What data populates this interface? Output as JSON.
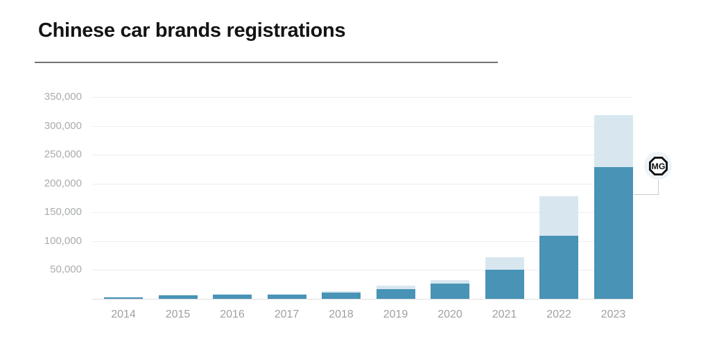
{
  "header": {
    "title": "Chinese car brands registrations"
  },
  "badge": {
    "label": "MG"
  },
  "colors": {
    "bar_dark": "#4893b6",
    "bar_light": "#d8e7ef",
    "grid": "#ededed",
    "axis_text": "#a9abad",
    "title_text": "#141414",
    "badge_bg": "#eef3f7"
  },
  "chart_data": {
    "type": "bar",
    "stacked": true,
    "title": "Chinese car brands registrations",
    "xlabel": "",
    "ylabel": "",
    "categories": [
      "2014",
      "2015",
      "2016",
      "2017",
      "2018",
      "2019",
      "2020",
      "2021",
      "2022",
      "2023"
    ],
    "series": [
      {
        "name": "MG",
        "color": "#4893b6",
        "values": [
          3500,
          6000,
          8000,
          7500,
          10500,
          17000,
          26000,
          50000,
          110000,
          228000
        ]
      },
      {
        "name": "",
        "color": "#d8e7ef",
        "values": [
          500,
          1000,
          1000,
          1500,
          2500,
          6000,
          6000,
          22000,
          68000,
          91000
        ]
      }
    ],
    "totals": [
      4000,
      7000,
      9000,
      9000,
      13000,
      23000,
      32000,
      72000,
      178000,
      319000
    ],
    "ylim": [
      0,
      350000
    ],
    "y_ticks": [
      {
        "value": 350000,
        "label": "350,000"
      },
      {
        "value": 300000,
        "label": "300,000"
      },
      {
        "value": 250000,
        "label": "250,000"
      },
      {
        "value": 200000,
        "label": "200,000"
      },
      {
        "value": 150000,
        "label": "150,000"
      },
      {
        "value": 100000,
        "label": "100,000"
      },
      {
        "value": 50000,
        "label": "50,000"
      }
    ],
    "grid": "horizontal",
    "legend_position": "none",
    "annotation": {
      "label": "MG",
      "series": "MG",
      "target_category": "2023"
    }
  }
}
